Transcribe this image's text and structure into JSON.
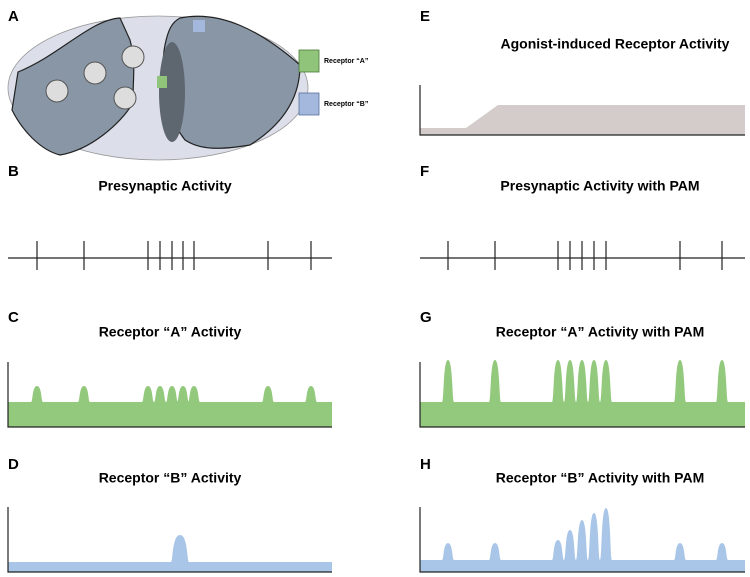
{
  "panels": [
    {
      "letter": "A"
    },
    {
      "letter": "B",
      "title": "Presynaptic Activity"
    },
    {
      "letter": "C",
      "title": "Receptor “A” Activity"
    },
    {
      "letter": "D",
      "title": "Receptor “B” Activity"
    },
    {
      "letter": "E",
      "title": "Agonist-induced Receptor Activity"
    },
    {
      "letter": "F",
      "title": "Presynaptic Activity with PAM"
    },
    {
      "letter": "G",
      "title": "Receptor “A” Activity with PAM"
    },
    {
      "letter": "H",
      "title": "Receptor “B” Activity with PAM"
    }
  ],
  "legend": [
    "Receptor “A”",
    "Receptor “B”"
  ]
}
